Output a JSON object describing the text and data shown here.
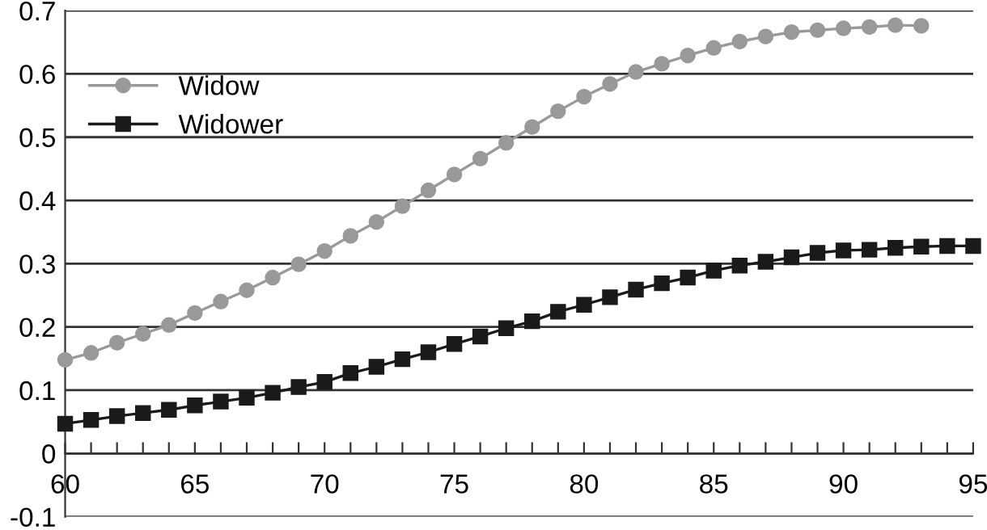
{
  "chart_data": {
    "type": "line",
    "x": [
      60,
      61,
      62,
      63,
      64,
      65,
      66,
      67,
      68,
      69,
      70,
      71,
      72,
      73,
      74,
      75,
      76,
      77,
      78,
      79,
      80,
      81,
      82,
      83,
      84,
      85,
      86,
      87,
      88,
      89,
      90,
      91,
      92,
      93,
      94,
      95
    ],
    "series": [
      {
        "name": "Widow",
        "color": "#999999",
        "marker": "circle",
        "values": [
          0.148,
          0.159,
          0.175,
          0.189,
          0.203,
          0.222,
          0.24,
          0.258,
          0.278,
          0.299,
          0.32,
          0.344,
          0.366,
          0.391,
          0.416,
          0.441,
          0.466,
          0.491,
          0.516,
          0.541,
          0.564,
          0.584,
          0.603,
          0.616,
          0.629,
          0.641,
          0.651,
          0.659,
          0.666,
          0.669,
          0.672,
          0.674,
          0.677,
          0.676,
          null,
          null
        ]
      },
      {
        "name": "Widower",
        "color": "#1a1a1a",
        "marker": "square",
        "values": [
          0.047,
          0.053,
          0.059,
          0.064,
          0.069,
          0.076,
          0.082,
          0.088,
          0.096,
          0.105,
          0.113,
          0.127,
          0.137,
          0.149,
          0.16,
          0.173,
          0.185,
          0.198,
          0.209,
          0.224,
          0.235,
          0.247,
          0.259,
          0.269,
          0.278,
          0.289,
          0.297,
          0.303,
          0.31,
          0.317,
          0.321,
          0.322,
          0.325,
          0.327,
          0.328,
          0.328
        ]
      }
    ],
    "xlim": [
      60,
      95
    ],
    "xticks": [
      60,
      {
        "value": 61,
        "label": null
      },
      {
        "value": 62,
        "label": null
      },
      {
        "value": 63,
        "label": null
      },
      {
        "value": 64,
        "label": null
      },
      65,
      {
        "value": 66,
        "label": null
      },
      {
        "value": 67,
        "label": null
      },
      {
        "value": 68,
        "label": null
      },
      {
        "value": 69,
        "label": null
      },
      70,
      {
        "value": 71,
        "label": null
      },
      {
        "value": 72,
        "label": null
      },
      {
        "value": 73,
        "label": null
      },
      {
        "value": 74,
        "label": null
      },
      75,
      {
        "value": 76,
        "label": null
      },
      {
        "value": 77,
        "label": null
      },
      {
        "value": 78,
        "label": null
      },
      {
        "value": 79,
        "label": null
      },
      80,
      {
        "value": 81,
        "label": null
      },
      {
        "value": 82,
        "label": null
      },
      {
        "value": 83,
        "label": null
      },
      {
        "value": 84,
        "label": null
      },
      85,
      {
        "value": 86,
        "label": null
      },
      {
        "value": 87,
        "label": null
      },
      {
        "value": 88,
        "label": null
      },
      {
        "value": 89,
        "label": null
      },
      90,
      {
        "value": 91,
        "label": null
      },
      {
        "value": 92,
        "label": null
      },
      {
        "value": 93,
        "label": null
      },
      {
        "value": 94,
        "label": null
      },
      95
    ],
    "ylim": [
      -0.1,
      0.7
    ],
    "yticks": [
      -0.1,
      0,
      0.1,
      0.2,
      0.3,
      0.4,
      0.5,
      0.6,
      0.7
    ],
    "grid": "y",
    "legend": "top left",
    "line_style": "solid"
  }
}
